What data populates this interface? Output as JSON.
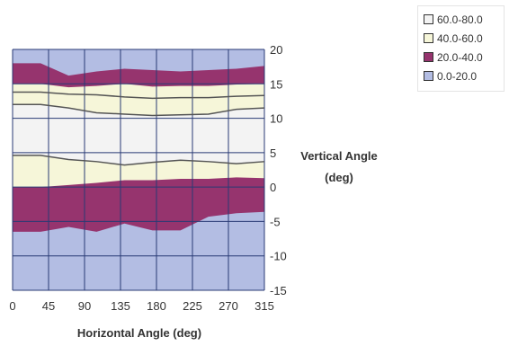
{
  "chart_data": {
    "type": "area",
    "title": "",
    "xlabel": "Horizontal Angle (deg)",
    "ylabel_lines": [
      "Vertical Angle",
      "(deg)"
    ],
    "x": [
      0,
      45,
      90,
      135,
      180,
      225,
      270,
      315
    ],
    "x_ticks": [
      "0",
      "45",
      "90",
      "135",
      "180",
      "225",
      "270",
      "315"
    ],
    "y_ticks": [
      "20",
      "15",
      "10",
      "5",
      "0",
      "-5",
      "-10",
      "-15"
    ],
    "ylim": [
      -15,
      20
    ],
    "grid": true,
    "legend_position": "top-right",
    "series": [
      {
        "name": "60.0-80.0",
        "color": "#f3f3f3"
      },
      {
        "name": "40.0-60.0",
        "color": "#f6f6d9"
      },
      {
        "name": "20.0-40.0",
        "color": "#96346e"
      },
      {
        "name": "0.0-20.0",
        "color": "#b3bde3"
      }
    ],
    "contour_boundaries": {
      "outer_top": [
        18,
        18,
        16.2,
        16.8,
        17.2,
        17,
        16.8,
        17,
        17.2,
        17.6
      ],
      "band1_top": [
        15,
        15,
        14.5,
        14.7,
        15,
        14.6,
        14.7,
        14.7,
        14.9,
        15
      ],
      "band1_bottom": [
        13.8,
        13.8,
        13.5,
        13.4,
        13.1,
        12.9,
        13,
        13,
        13.2,
        13.3
      ],
      "inner_top": [
        12,
        12,
        11.5,
        10.8,
        10.6,
        10.4,
        10.5,
        10.6,
        11.3,
        11.5
      ],
      "inner_bottom": [
        4.6,
        4.6,
        4,
        3.7,
        3.2,
        3.6,
        3.9,
        3.7,
        3.4,
        3.7
      ],
      "band2_top": [
        0,
        0,
        0.3,
        0.6,
        1,
        1,
        1.2,
        1.2,
        1.4,
        1.3
      ],
      "band2_bottom": [
        -6.5,
        -6.5,
        -5.8,
        -6.5,
        -5.3,
        -6.3,
        -6.3,
        -4.3,
        -3.8,
        -3.6
      ]
    }
  }
}
